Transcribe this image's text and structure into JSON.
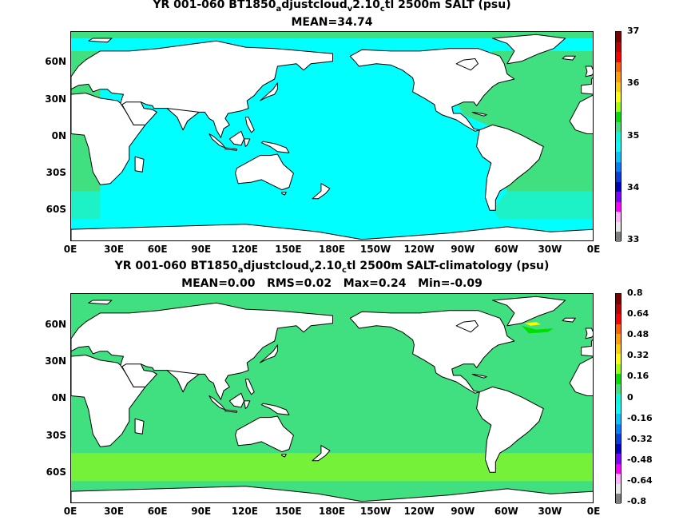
{
  "panels": [
    {
      "title_parts": [
        "YR 001-060 BT1850",
        "a",
        "djustcloud",
        "v",
        "2.10",
        "c",
        "tl 2500m SALT (psu)"
      ],
      "subtitle": "MEAN=34.74",
      "colorbar": {
        "labels": [
          "37",
          "36",
          "35",
          "34",
          "33"
        ],
        "colors": [
          "#800000",
          "#c00000",
          "#ff0000",
          "#ff6000",
          "#ffa000",
          "#ffd000",
          "#ffff00",
          "#a0ff00",
          "#00e000",
          "#40e080",
          "#00ffe0",
          "#00ffff",
          "#00c8ff",
          "#0080ff",
          "#0040e0",
          "#0000c0",
          "#8000ff",
          "#ff00ff",
          "#ffb0ff",
          "#e8e8e8",
          "#808080"
        ]
      },
      "field": {
        "pacific": "#00ffff",
        "indian": "#00ffff",
        "atlantic": "#40e080",
        "southern": "#00ffff",
        "arctic": "#40e080"
      }
    },
    {
      "title_parts": [
        "YR 001-060 BT1850",
        "a",
        "djustcloud",
        "v",
        "2.10",
        "c",
        "tl 2500m SALT-climatology (psu)"
      ],
      "subtitle": "MEAN=0.00   RMS=0.02   Max=0.24   Min=-0.09",
      "colorbar": {
        "labels": [
          "0.8",
          "0.64",
          "0.48",
          "0.32",
          "0.16",
          "0",
          "-0.16",
          "-0.32",
          "-0.48",
          "-0.64",
          "-0.8"
        ],
        "colors": [
          "#800000",
          "#c00000",
          "#ff0000",
          "#ff6000",
          "#ffa000",
          "#ffd000",
          "#ffff00",
          "#a0ff00",
          "#00e000",
          "#40e080",
          "#00ffe0",
          "#00ffff",
          "#00c8ff",
          "#0080ff",
          "#0040e0",
          "#0000c0",
          "#8000ff",
          "#ff00ff",
          "#ffb0ff",
          "#e8e8e8",
          "#808080"
        ]
      },
      "field": {
        "pacific": "#40e080",
        "indian": "#40e080",
        "atlantic": "#40e080",
        "southern": "#a0ff00",
        "arctic": "#40e080"
      }
    }
  ],
  "lat_labels": [
    "60N",
    "30N",
    "0N",
    "30S",
    "60S"
  ],
  "lon_labels": [
    "0E",
    "30E",
    "60E",
    "90E",
    "120E",
    "150E",
    "180E",
    "150W",
    "120W",
    "90W",
    "60W",
    "30W",
    "0E"
  ],
  "land_color": "#ffffff",
  "coast_color": "#000000"
}
